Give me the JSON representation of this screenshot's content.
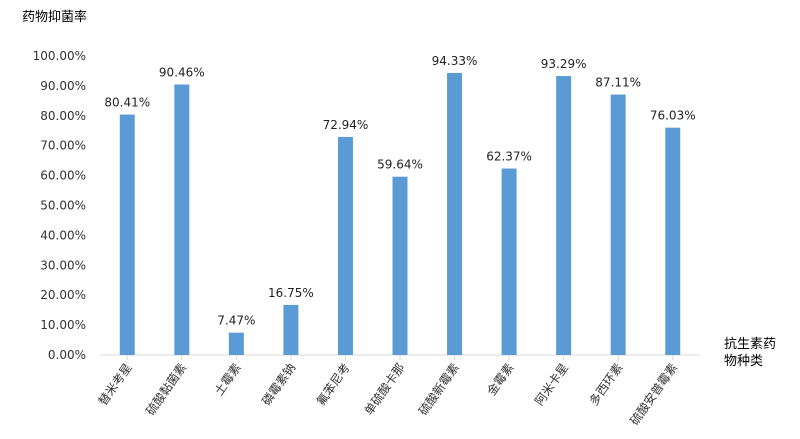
{
  "chart_data": {
    "type": "bar",
    "ylabel": "药物抑菌率",
    "xlabel": "抗生素药物种类",
    "categories": [
      "替米考星",
      "硫酸黏菌素",
      "土霉素",
      "磷霉素钠",
      "氟苯尼考",
      "单硫酸卡那",
      "硫酸新霉素",
      "金霉素",
      "阿米卡星",
      "多西环素",
      "硫酸安普霉素"
    ],
    "values": [
      80.41,
      90.46,
      7.47,
      16.75,
      72.94,
      59.64,
      94.33,
      62.37,
      93.29,
      87.11,
      76.03
    ],
    "data_labels": [
      "80.41%",
      "90.46%",
      "7.47%",
      "16.75%",
      "72.94%",
      "59.64%",
      "94.33%",
      "62.37%",
      "93.29%",
      "87.11%",
      "76.03%"
    ],
    "yticks": [
      "0.00%",
      "10.00%",
      "20.00%",
      "30.00%",
      "40.00%",
      "50.00%",
      "60.00%",
      "70.00%",
      "80.00%",
      "90.00%",
      "100.00%"
    ],
    "ylim": [
      0,
      100
    ],
    "grid": false,
    "legend": "none",
    "colors": {
      "bar": "#5b9bd5",
      "axis": "#d9d9d9"
    }
  }
}
